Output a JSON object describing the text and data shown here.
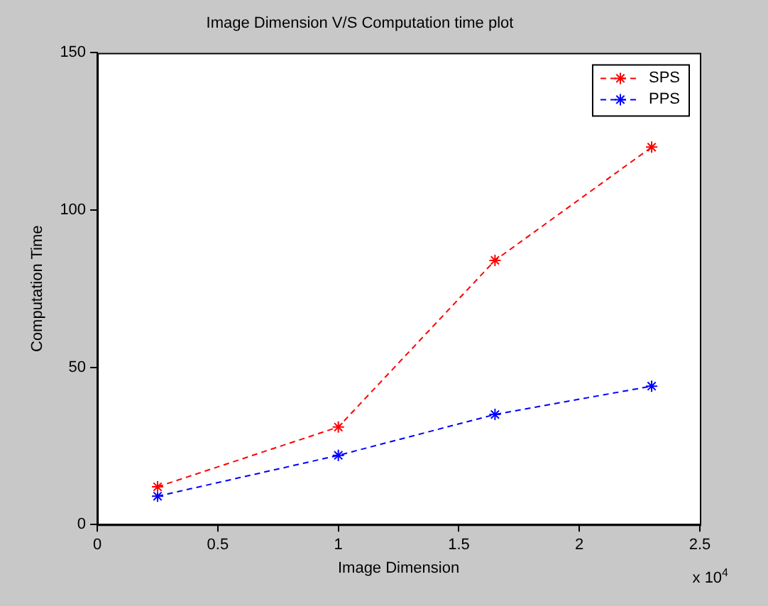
{
  "chart_data": {
    "type": "line",
    "title": "Image Dimension V/S Computation time plot",
    "xlabel": "Image Dimension",
    "ylabel": "Computation Time",
    "x": [
      0.25,
      1,
      1.65,
      2.3
    ],
    "series": [
      {
        "name": "SPS",
        "color": "#ff0000",
        "values": [
          12,
          31,
          84,
          120
        ]
      },
      {
        "name": "PPS",
        "color": "#0000ff",
        "values": [
          9,
          22,
          35,
          44
        ]
      }
    ],
    "xlim": [
      0,
      2.5
    ],
    "xticks": [
      0,
      0.5,
      1,
      1.5,
      2,
      2.5
    ],
    "ylim": [
      0,
      150
    ],
    "yticks": [
      0,
      50,
      100,
      150
    ],
    "annotations": [
      "x 10$^{4}$"
    ],
    "grid": false,
    "legend": "top right",
    "marker": "cross",
    "line_style": "dashed"
  }
}
